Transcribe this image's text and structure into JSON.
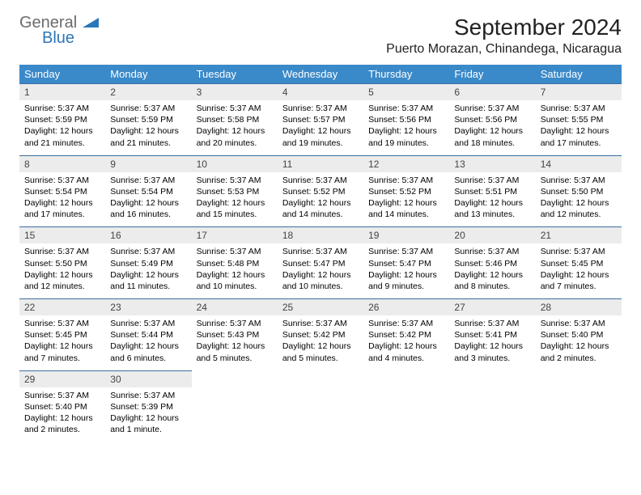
{
  "logo": {
    "general": "General",
    "blue": "Blue"
  },
  "title": "September 2024",
  "location": "Puerto Morazan, Chinandega, Nicaragua",
  "colors": {
    "header_bg": "#3a89c9",
    "header_text": "#ffffff",
    "daynum_bg": "#ececec",
    "border": "#3a6fa0",
    "logo_gray": "#6b6b6b",
    "logo_blue": "#2c77ba"
  },
  "weekdays": [
    "Sunday",
    "Monday",
    "Tuesday",
    "Wednesday",
    "Thursday",
    "Friday",
    "Saturday"
  ],
  "rows": [
    [
      {
        "n": "1",
        "sr": "Sunrise: 5:37 AM",
        "ss": "Sunset: 5:59 PM",
        "d1": "Daylight: 12 hours",
        "d2": "and 21 minutes."
      },
      {
        "n": "2",
        "sr": "Sunrise: 5:37 AM",
        "ss": "Sunset: 5:59 PM",
        "d1": "Daylight: 12 hours",
        "d2": "and 21 minutes."
      },
      {
        "n": "3",
        "sr": "Sunrise: 5:37 AM",
        "ss": "Sunset: 5:58 PM",
        "d1": "Daylight: 12 hours",
        "d2": "and 20 minutes."
      },
      {
        "n": "4",
        "sr": "Sunrise: 5:37 AM",
        "ss": "Sunset: 5:57 PM",
        "d1": "Daylight: 12 hours",
        "d2": "and 19 minutes."
      },
      {
        "n": "5",
        "sr": "Sunrise: 5:37 AM",
        "ss": "Sunset: 5:56 PM",
        "d1": "Daylight: 12 hours",
        "d2": "and 19 minutes."
      },
      {
        "n": "6",
        "sr": "Sunrise: 5:37 AM",
        "ss": "Sunset: 5:56 PM",
        "d1": "Daylight: 12 hours",
        "d2": "and 18 minutes."
      },
      {
        "n": "7",
        "sr": "Sunrise: 5:37 AM",
        "ss": "Sunset: 5:55 PM",
        "d1": "Daylight: 12 hours",
        "d2": "and 17 minutes."
      }
    ],
    [
      {
        "n": "8",
        "sr": "Sunrise: 5:37 AM",
        "ss": "Sunset: 5:54 PM",
        "d1": "Daylight: 12 hours",
        "d2": "and 17 minutes."
      },
      {
        "n": "9",
        "sr": "Sunrise: 5:37 AM",
        "ss": "Sunset: 5:54 PM",
        "d1": "Daylight: 12 hours",
        "d2": "and 16 minutes."
      },
      {
        "n": "10",
        "sr": "Sunrise: 5:37 AM",
        "ss": "Sunset: 5:53 PM",
        "d1": "Daylight: 12 hours",
        "d2": "and 15 minutes."
      },
      {
        "n": "11",
        "sr": "Sunrise: 5:37 AM",
        "ss": "Sunset: 5:52 PM",
        "d1": "Daylight: 12 hours",
        "d2": "and 14 minutes."
      },
      {
        "n": "12",
        "sr": "Sunrise: 5:37 AM",
        "ss": "Sunset: 5:52 PM",
        "d1": "Daylight: 12 hours",
        "d2": "and 14 minutes."
      },
      {
        "n": "13",
        "sr": "Sunrise: 5:37 AM",
        "ss": "Sunset: 5:51 PM",
        "d1": "Daylight: 12 hours",
        "d2": "and 13 minutes."
      },
      {
        "n": "14",
        "sr": "Sunrise: 5:37 AM",
        "ss": "Sunset: 5:50 PM",
        "d1": "Daylight: 12 hours",
        "d2": "and 12 minutes."
      }
    ],
    [
      {
        "n": "15",
        "sr": "Sunrise: 5:37 AM",
        "ss": "Sunset: 5:50 PM",
        "d1": "Daylight: 12 hours",
        "d2": "and 12 minutes."
      },
      {
        "n": "16",
        "sr": "Sunrise: 5:37 AM",
        "ss": "Sunset: 5:49 PM",
        "d1": "Daylight: 12 hours",
        "d2": "and 11 minutes."
      },
      {
        "n": "17",
        "sr": "Sunrise: 5:37 AM",
        "ss": "Sunset: 5:48 PM",
        "d1": "Daylight: 12 hours",
        "d2": "and 10 minutes."
      },
      {
        "n": "18",
        "sr": "Sunrise: 5:37 AM",
        "ss": "Sunset: 5:47 PM",
        "d1": "Daylight: 12 hours",
        "d2": "and 10 minutes."
      },
      {
        "n": "19",
        "sr": "Sunrise: 5:37 AM",
        "ss": "Sunset: 5:47 PM",
        "d1": "Daylight: 12 hours",
        "d2": "and 9 minutes."
      },
      {
        "n": "20",
        "sr": "Sunrise: 5:37 AM",
        "ss": "Sunset: 5:46 PM",
        "d1": "Daylight: 12 hours",
        "d2": "and 8 minutes."
      },
      {
        "n": "21",
        "sr": "Sunrise: 5:37 AM",
        "ss": "Sunset: 5:45 PM",
        "d1": "Daylight: 12 hours",
        "d2": "and 7 minutes."
      }
    ],
    [
      {
        "n": "22",
        "sr": "Sunrise: 5:37 AM",
        "ss": "Sunset: 5:45 PM",
        "d1": "Daylight: 12 hours",
        "d2": "and 7 minutes."
      },
      {
        "n": "23",
        "sr": "Sunrise: 5:37 AM",
        "ss": "Sunset: 5:44 PM",
        "d1": "Daylight: 12 hours",
        "d2": "and 6 minutes."
      },
      {
        "n": "24",
        "sr": "Sunrise: 5:37 AM",
        "ss": "Sunset: 5:43 PM",
        "d1": "Daylight: 12 hours",
        "d2": "and 5 minutes."
      },
      {
        "n": "25",
        "sr": "Sunrise: 5:37 AM",
        "ss": "Sunset: 5:42 PM",
        "d1": "Daylight: 12 hours",
        "d2": "and 5 minutes."
      },
      {
        "n": "26",
        "sr": "Sunrise: 5:37 AM",
        "ss": "Sunset: 5:42 PM",
        "d1": "Daylight: 12 hours",
        "d2": "and 4 minutes."
      },
      {
        "n": "27",
        "sr": "Sunrise: 5:37 AM",
        "ss": "Sunset: 5:41 PM",
        "d1": "Daylight: 12 hours",
        "d2": "and 3 minutes."
      },
      {
        "n": "28",
        "sr": "Sunrise: 5:37 AM",
        "ss": "Sunset: 5:40 PM",
        "d1": "Daylight: 12 hours",
        "d2": "and 2 minutes."
      }
    ],
    [
      {
        "n": "29",
        "sr": "Sunrise: 5:37 AM",
        "ss": "Sunset: 5:40 PM",
        "d1": "Daylight: 12 hours",
        "d2": "and 2 minutes."
      },
      {
        "n": "30",
        "sr": "Sunrise: 5:37 AM",
        "ss": "Sunset: 5:39 PM",
        "d1": "Daylight: 12 hours",
        "d2": "and 1 minute."
      },
      null,
      null,
      null,
      null,
      null
    ]
  ]
}
